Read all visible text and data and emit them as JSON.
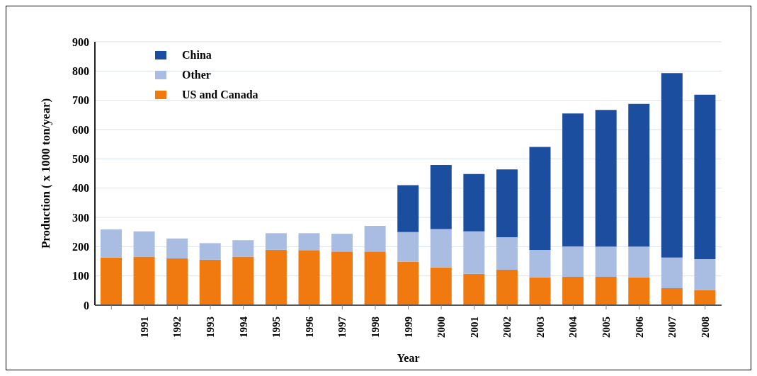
{
  "chart_data": {
    "type": "bar",
    "stacked": true,
    "xlabel": "Year",
    "ylabel": "Production ( x 1000 ton/year)",
    "categories": [
      null,
      "1991",
      "1992",
      "1993",
      "1994",
      "1995",
      "1996",
      "1997",
      "1998",
      "1999",
      "2000",
      "2001",
      "2002",
      "2003",
      "2004",
      "2005",
      "2006",
      "2007",
      "2008"
    ],
    "series": [
      {
        "name": "US and Canada",
        "color": "#f07a10",
        "values": [
          163,
          166,
          160,
          155,
          166,
          189,
          188,
          183,
          183,
          149,
          129,
          107,
          121,
          95,
          97,
          97,
          95,
          58,
          52
        ]
      },
      {
        "name": "Other",
        "color": "#a9bde2",
        "values": [
          96,
          86,
          68,
          57,
          56,
          57,
          58,
          61,
          88,
          101,
          131,
          145,
          111,
          94,
          104,
          103,
          105,
          105,
          105
        ]
      },
      {
        "name": "China",
        "color": "#1b4e9e",
        "values": [
          0,
          0,
          0,
          0,
          0,
          0,
          0,
          0,
          0,
          160,
          219,
          196,
          232,
          352,
          454,
          467,
          488,
          630,
          562
        ]
      }
    ],
    "ylim": [
      0,
      900
    ],
    "yticks": [
      0,
      100,
      200,
      300,
      400,
      500,
      600,
      700,
      800,
      900
    ],
    "grid": "y",
    "legend": "top left"
  }
}
